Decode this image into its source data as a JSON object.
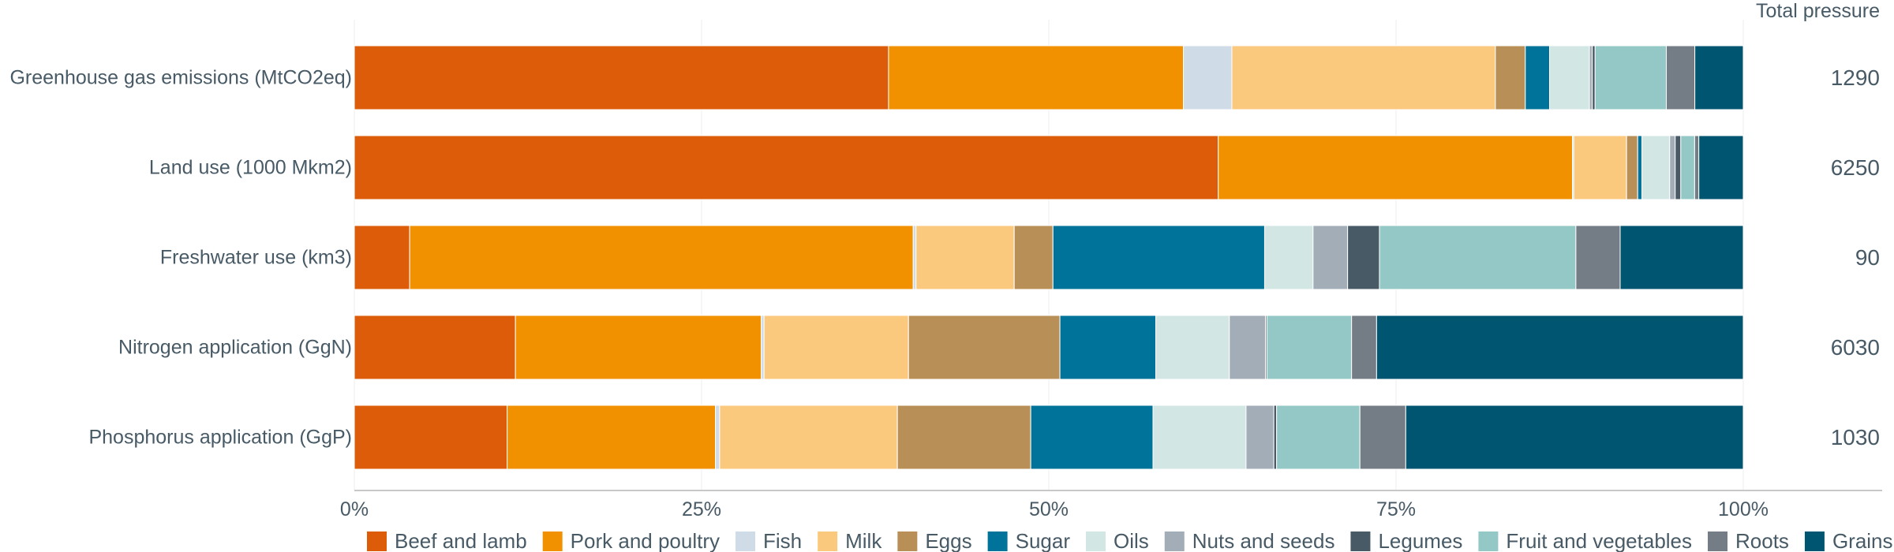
{
  "chart_data": {
    "type": "bar",
    "orientation": "horizontal",
    "stacked": true,
    "normalized": true,
    "categories": [
      "Greenhouse gas emissions (MtCO2eq)",
      "Land use (1000 Mkm2)",
      "Freshwater use (km3)",
      "Nitrogen application (GgN)",
      "Phosphorus application (GgP)"
    ],
    "series": [
      {
        "name": "Beef and lamb",
        "color": "#dd5c0a",
        "values": [
          37.5,
          62.2,
          4.0,
          11.6,
          11.0
        ]
      },
      {
        "name": "Pork and poultry",
        "color": "#f29100",
        "values": [
          20.7,
          25.5,
          36.4,
          17.7,
          15.0
        ]
      },
      {
        "name": "Fish",
        "color": "#cfdbe6",
        "values": [
          3.4,
          0.1,
          0.2,
          0.2,
          0.3
        ]
      },
      {
        "name": "Milk",
        "color": "#fbc97d",
        "values": [
          18.5,
          3.8,
          7.1,
          10.4,
          12.8
        ]
      },
      {
        "name": "Eggs",
        "color": "#b88f56",
        "values": [
          2.1,
          0.8,
          2.8,
          10.9,
          9.6
        ]
      },
      {
        "name": "Sugar",
        "color": "#00739a",
        "values": [
          1.7,
          0.3,
          15.3,
          6.9,
          8.8
        ]
      },
      {
        "name": "Oils",
        "color": "#d2e6e4",
        "values": [
          2.8,
          2.0,
          3.5,
          5.3,
          6.7
        ]
      },
      {
        "name": "Nuts and seeds",
        "color": "#a3adb8",
        "values": [
          0.2,
          0.4,
          2.5,
          2.6,
          2.0
        ]
      },
      {
        "name": "Legumes",
        "color": "#475a66",
        "values": [
          0.2,
          0.4,
          2.3,
          0.1,
          0.2
        ]
      },
      {
        "name": "Fruit and vegetables",
        "color": "#94c8c6",
        "values": [
          5.0,
          1.0,
          14.2,
          6.1,
          6.0
        ]
      },
      {
        "name": "Roots",
        "color": "#747d86",
        "values": [
          2.0,
          0.3,
          3.2,
          1.8,
          3.3
        ]
      },
      {
        "name": "Grains",
        "color": "#005570",
        "values": [
          3.4,
          3.2,
          8.9,
          26.4,
          24.3
        ]
      }
    ],
    "totals": {
      "title": "Total pressure",
      "values": [
        "1290",
        "6250",
        "90",
        "6030",
        "1030"
      ]
    },
    "xticks": [
      "0%",
      "25%",
      "50%",
      "75%",
      "100%"
    ],
    "xlim": [
      0,
      100
    ],
    "xlabel": "",
    "ylabel": "",
    "title": "",
    "grid": true,
    "legend": "bottom"
  }
}
